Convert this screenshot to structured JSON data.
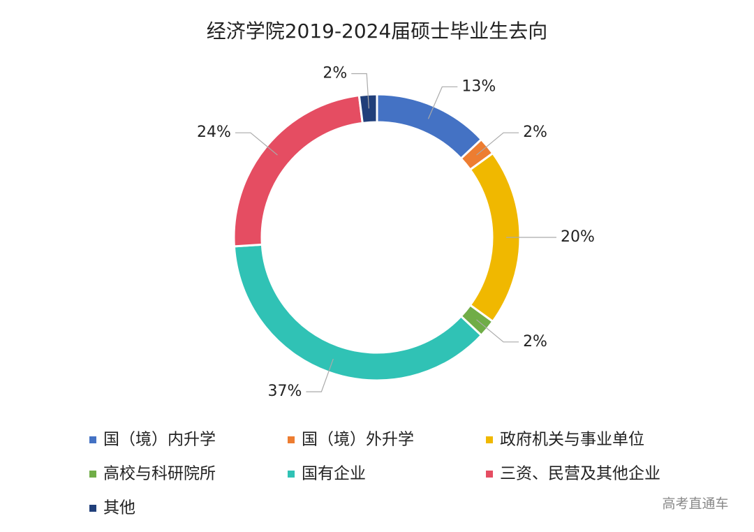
{
  "chart_data": {
    "type": "donut",
    "title": "经济学院2019-2024届硕士毕业生去向",
    "categories": [
      "国（境）内升学",
      "国（境）外升学",
      "政府机关与事业单位",
      "高校与科研院所",
      "国有企业",
      "三资、民营及其他企业",
      "其他"
    ],
    "values": [
      13,
      2,
      20,
      2,
      37,
      24,
      2
    ],
    "value_labels": [
      "13%",
      "2%",
      "20%",
      "2%",
      "37%",
      "24%",
      "2%"
    ],
    "colors": [
      "#4472c4",
      "#ed7d31",
      "#f0b800",
      "#70ad47",
      "#30c2b5",
      "#e54d62",
      "#203f7a"
    ],
    "legend": "bottom"
  },
  "watermark": "高考直通车"
}
